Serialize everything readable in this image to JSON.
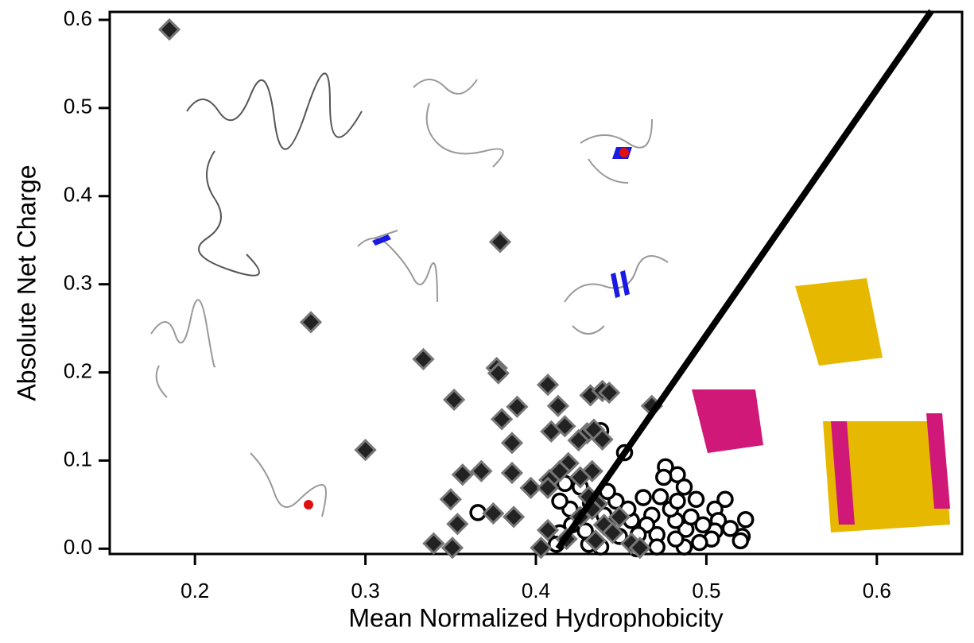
{
  "chart_data": {
    "type": "scatter",
    "xlabel": "Mean Normalized Hydrophobicity",
    "ylabel": "Absolute Net Charge",
    "xlim": [
      0.15,
      0.65
    ],
    "ylim": [
      -0.006,
      0.609
    ],
    "xticks": [
      0.2,
      0.3,
      0.4,
      0.5,
      0.6
    ],
    "yticks": [
      {
        "value": 0,
        "label": "0.0"
      },
      0.1,
      0.2,
      0.3,
      0.4,
      0.5,
      0.6
    ],
    "series": [
      {
        "marker": "circle",
        "color": "#000000",
        "x": [
          0.366,
          0.452,
          0.438,
          0.476,
          0.483,
          0.475,
          0.487,
          0.494,
          0.511,
          0.523,
          0.505,
          0.507,
          0.505,
          0.521,
          0.52,
          0.503,
          0.496,
          0.487,
          0.482,
          0.488,
          0.482,
          0.479,
          0.468,
          0.465,
          0.471,
          0.46,
          0.456,
          0.454,
          0.447,
          0.44,
          0.442,
          0.449,
          0.438,
          0.431,
          0.429,
          0.421,
          0.414,
          0.412,
          0.42,
          0.426,
          0.414,
          0.417,
          0.432,
          0.442,
          0.463,
          0.473,
          0.483,
          0.491,
          0.498,
          0.514,
          0.459,
          0.471
        ],
        "values": [
          0.041,
          0.109,
          0.134,
          0.093,
          0.084,
          0.081,
          0.07,
          0.056,
          0.056,
          0.033,
          0.045,
          0.032,
          0.02,
          0.014,
          0.009,
          0.011,
          0.007,
          0.002,
          0.011,
          0.022,
          0.032,
          0.045,
          0.038,
          0.027,
          0.016,
          0.016,
          0.032,
          0.045,
          0.054,
          0.038,
          0.025,
          0.014,
          0.002,
          0.005,
          0.02,
          0.027,
          0.018,
          0.005,
          0.045,
          0.07,
          0.054,
          0.074,
          0.052,
          0.065,
          0.058,
          0.059,
          0.054,
          0.036,
          0.027,
          0.023,
          0.0,
          0.002
        ]
      },
      {
        "marker": "diamond",
        "color": "#222222",
        "x": [
          0.185,
          0.379,
          0.268,
          0.334,
          0.3,
          0.352,
          0.377,
          0.378,
          0.407,
          0.389,
          0.38,
          0.413,
          0.432,
          0.439,
          0.443,
          0.468,
          0.409,
          0.417,
          0.43,
          0.434,
          0.439,
          0.425,
          0.386,
          0.386,
          0.357,
          0.368,
          0.433,
          0.419,
          0.414,
          0.408,
          0.397,
          0.407,
          0.431,
          0.436,
          0.35,
          0.375,
          0.387,
          0.354,
          0.34,
          0.351,
          0.403,
          0.407,
          0.426,
          0.433,
          0.44,
          0.418,
          0.435,
          0.449,
          0.456,
          0.461,
          0.445,
          0.426
        ],
        "values": [
          0.589,
          0.348,
          0.257,
          0.215,
          0.112,
          0.169,
          0.205,
          0.199,
          0.186,
          0.161,
          0.147,
          0.162,
          0.174,
          0.179,
          0.177,
          0.162,
          0.133,
          0.139,
          0.131,
          0.135,
          0.124,
          0.123,
          0.12,
          0.086,
          0.084,
          0.088,
          0.088,
          0.097,
          0.088,
          0.078,
          0.069,
          0.069,
          0.059,
          0.051,
          0.056,
          0.04,
          0.036,
          0.028,
          0.006,
          0.001,
          0.001,
          0.021,
          0.036,
          0.045,
          0.027,
          0.011,
          0.009,
          0.036,
          0.006,
          0.001,
          0.018,
          0.081
        ]
      },
      {
        "marker": "line",
        "color": "#000000",
        "x": [
          0.413,
          0.632
        ],
        "values": [
          0.0,
          0.61
        ]
      }
    ]
  }
}
